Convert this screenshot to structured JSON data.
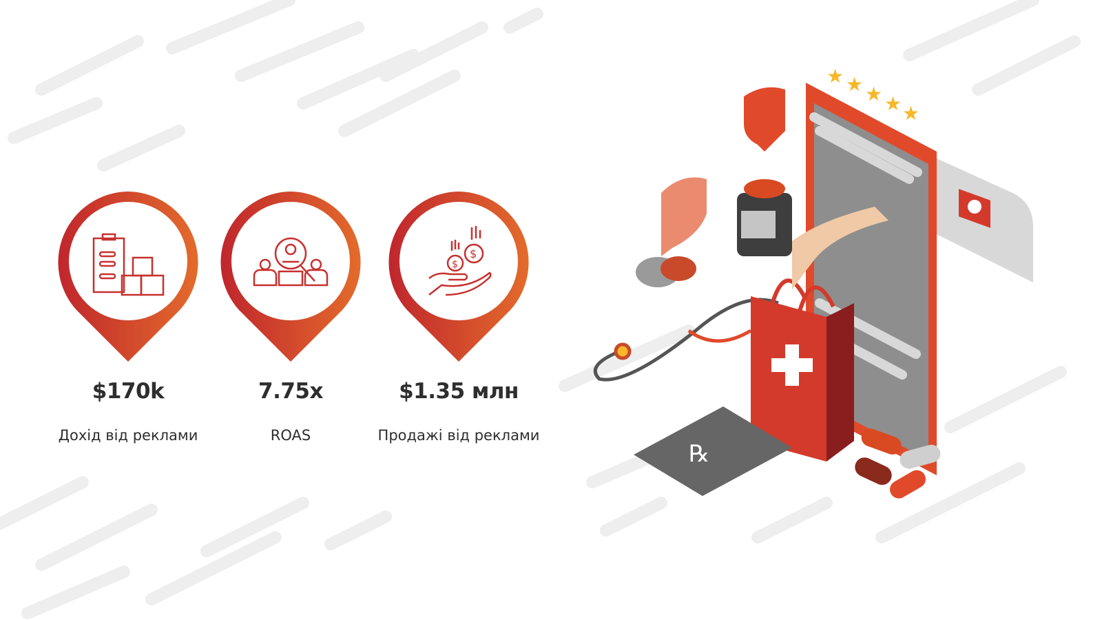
{
  "colors": {
    "pin_start": "#c0262d",
    "pin_end": "#e36b2b",
    "text": "#2e2e2e",
    "stripe": "#eeeeef"
  },
  "stats": [
    {
      "icon": "clipboard-boxes-icon",
      "value": "$170k",
      "label": "Дохід від реклами"
    },
    {
      "icon": "people-search-icon",
      "value": "7.75x",
      "label": "ROAS"
    },
    {
      "icon": "hand-coins-icon",
      "value": "$1.35 млн",
      "label": "Продажі від реклами"
    }
  ],
  "illustration": {
    "subject": "online-pharmacy-illustration",
    "rating_stars": 5
  }
}
